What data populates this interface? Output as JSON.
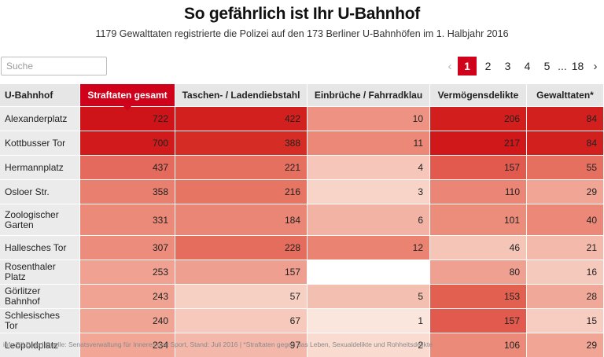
{
  "header": {
    "title": "So gefährlich ist Ihr U-Bahnhof",
    "subtitle": "1179 Gewalttaten registrierte die Polizei auf den 173 Berliner U-Bahnhöfen im 1. Halbjahr 2016"
  },
  "search": {
    "placeholder": "Suche",
    "value": ""
  },
  "pagination": {
    "prev_icon": "‹",
    "next_icon": "›",
    "active": "1",
    "pages": [
      "2",
      "3",
      "4",
      "5"
    ],
    "ellipsis": "...",
    "last": "18"
  },
  "table": {
    "columns": [
      "U-Bahnhof",
      "Straftaten gesamt",
      "Taschen- / Ladendiebstahl",
      "Einbrüche / Fahrradklau",
      "Vermögensdelikte",
      "Gewalttaten*"
    ],
    "sorted_column": "Straftaten gesamt",
    "rows": [
      {
        "name": "Alexanderplatz",
        "values": [
          "722",
          "422",
          "10",
          "206",
          "84"
        ],
        "colors": [
          "#ce1419",
          "#d2201f",
          "#ee9383",
          "#d31e1e",
          "#d2201f"
        ]
      },
      {
        "name": "Kottbusser Tor",
        "values": [
          "700",
          "388",
          "11",
          "217",
          "84"
        ],
        "colors": [
          "#d11a1b",
          "#d52d25",
          "#ec8877",
          "#d0171a",
          "#d2201f"
        ]
      },
      {
        "name": "Hermannplatz",
        "values": [
          "437",
          "221",
          "4",
          "157",
          "55"
        ],
        "colors": [
          "#e36a5c",
          "#e6705f",
          "#f5c6b9",
          "#e15a4d",
          "#e5705f"
        ]
      },
      {
        "name": "Osloer Str.",
        "values": [
          "358",
          "216",
          "3",
          "110",
          "29"
        ],
        "colors": [
          "#e9806f",
          "#e77564",
          "#f8d4c8",
          "#eb8676",
          "#f0a595"
        ]
      },
      {
        "name": "Zoologischer Garten",
        "values": [
          "331",
          "184",
          "6",
          "101",
          "40"
        ],
        "colors": [
          "#eb8a79",
          "#ea8676",
          "#f2b3a5",
          "#ec8d7c",
          "#eb8877"
        ]
      },
      {
        "name": "Hallesches Tor",
        "values": [
          "307",
          "228",
          "12",
          "46",
          "21"
        ],
        "colors": [
          "#ec8c7c",
          "#e56d5d",
          "#ea8372",
          "#f5c5b8",
          "#f3b9ab"
        ]
      },
      {
        "name": "Rosenthaler Platz",
        "values": [
          "253",
          "157",
          "",
          "80",
          "16"
        ],
        "colors": [
          "#f0a191",
          "#ef9f8f",
          "#ffffff",
          "#efa090",
          "#f6c9bd"
        ]
      },
      {
        "name": "Görlitzer Bahnhof",
        "values": [
          "243",
          "57",
          "5",
          "153",
          "28"
        ],
        "colors": [
          "#f0a393",
          "#f7d0c4",
          "#f3bfb1",
          "#e2604f",
          "#f0a898"
        ]
      },
      {
        "name": "Schlesisches Tor",
        "values": [
          "240",
          "67",
          "1",
          "157",
          "15"
        ],
        "colors": [
          "#f0a494",
          "#f6c9bc",
          "#fbe6de",
          "#e15a4d",
          "#f7cdc2"
        ]
      },
      {
        "name": "Leopoldplatz",
        "values": [
          "234",
          "97",
          "2",
          "106",
          "29"
        ],
        "colors": [
          "#f1a696",
          "#f3b8aa",
          "#f9dbd0",
          "#ec8a7a",
          "#f0a595"
        ]
      }
    ]
  },
  "footer": "info.BILD.de | Quelle: Senatsverwaltung für Inneres und Sport, Stand: Juli 2016 | *Straftaten gegen das Leben, Sexualdelikte und Rohheitsdelikte"
}
